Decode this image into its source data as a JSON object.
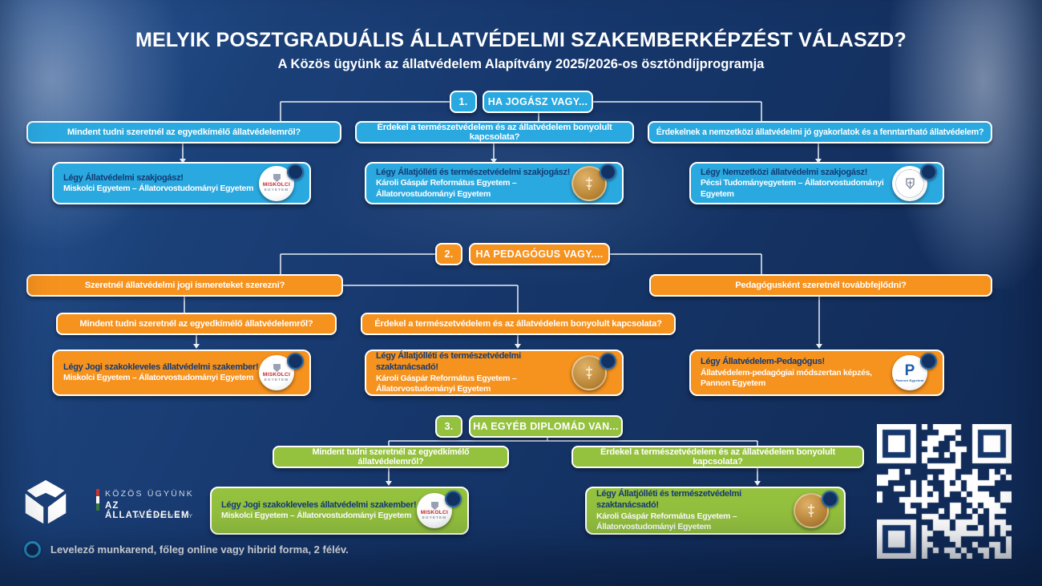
{
  "header": {
    "title": "MELYIK POSZTGRADUÁLIS ÁLLATVÉDELMI SZAKEMBERKÉPZÉST VÁLASZD?",
    "subtitle": "A Közös ügyünk az állatvédelem Alapítvány 2025/2026-os ösztöndíjprogramja"
  },
  "sections": [
    {
      "number": "1.",
      "label": "HA JOGÁSZ VAGY...",
      "accent_color": "#2aa9e0",
      "questions": [
        "Mindent tudni szeretnél az egyedkímélő állatvédelemről?",
        "Érdekel a természetvédelem és az állatvédelem bonyolult kapcsolata?",
        "Érdekelnek a nemzetközi állatvédelmi jó gyakorlatok és a fenntartható állatvédelem?"
      ],
      "results": [
        {
          "title": "Légy Állatvédelmi szakjogász!",
          "org": "Miskolci Egyetem – Állatorvostudományi Egyetem",
          "badge": "miskolci-egyetem"
        },
        {
          "title": "Légy Állatjólléti és természetvédelmi szakjogász!",
          "org": "Károli Gáspár Református Egyetem – Állatorvostudományi Egyetem",
          "badge": "karoli-gaspar-egyetem"
        },
        {
          "title": "Légy Nemzetközi állatvédelmi szakjogász!",
          "org": "Pécsi Tudományegyetem – Állatorvostudományi Egyetem",
          "badge": "pecsi-tudomanyegyetem"
        }
      ]
    },
    {
      "number": "2.",
      "label": "HA PEDAGÓGUS VAGY....",
      "accent_color": "#f6921e",
      "questions": [
        "Szeretnél állatvédelmi jogi ismereteket szerezni?",
        "Pedagógusként szeretnél továbbfejlődni?",
        "Mindent tudni szeretnél az egyedkímélő állatvédelemről?",
        "Érdekel a természetvédelem és az állatvédelem bonyolult kapcsolata?"
      ],
      "results": [
        {
          "title": "Légy Jogi szakokleveles állatvédelmi szakember!",
          "org": "Miskolci Egyetem – Állatorvostudományi Egyetem",
          "badge": "miskolci-egyetem"
        },
        {
          "title": "Légy Állatjólléti és természetvédelmi szaktanácsadó!",
          "org": "Károli Gáspár Református Egyetem – Állatorvostudományi Egyetem",
          "badge": "karoli-gaspar-egyetem"
        },
        {
          "title": "Légy Állatvédelem-Pedagógus!",
          "org": "Állatvédelem-pedagógiai módszertan képzés, Pannon Egyetem",
          "badge": "pannon-egyetem"
        }
      ]
    },
    {
      "number": "3.",
      "label": "HA EGYÉB DIPLOMÁD VAN...",
      "accent_color": "#94c13e",
      "questions": [
        "Mindent tudni szeretnél az egyedkímélő állatvédelemről?",
        "Érdekel a természetvédelem és az állatvédelem bonyolult kapcsolata?"
      ],
      "results": [
        {
          "title": "Légy Jogi szakokleveles állatvédelmi szakember!",
          "org": "Miskolci Egyetem – Állatorvostudományi Egyetem",
          "badge": "miskolci-egyetem"
        },
        {
          "title": "Légy Állatjólléti és természetvédelmi szaktanácsadó!",
          "org": "Károli Gáspár Református Egyetem – Állatorvostudományi Egyetem",
          "badge": "karoli-gaspar-egyetem"
        }
      ]
    }
  ],
  "badges": {
    "miskolci": {
      "line1": "MISKOLCI",
      "line2": "EGYETEM"
    },
    "pannon": {
      "letter": "P",
      "label": "Pannon Egyetem"
    }
  },
  "footer": {
    "legend_text": "Levelező munkarend, főleg online vagy hibrid forma, 2 félév.",
    "foundation": {
      "line1": "KÖZÖS ÜGYÜNK",
      "line2": "AZ ÁLLATVÉDELEM",
      "line3": "ALAPÍTVÁNY"
    }
  },
  "colors": {
    "background_navy": "#16376c",
    "blue": "#2aa9e0",
    "orange": "#f6921e",
    "green": "#94c13e",
    "result_title_navy": "#143a73"
  }
}
